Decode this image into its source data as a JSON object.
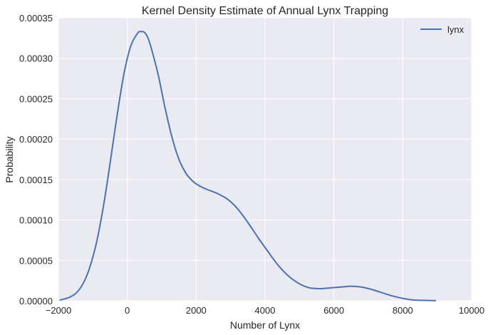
{
  "chart_data": {
    "type": "line",
    "title": "Kernel Density Estimate of Annual Lynx Trapping",
    "xlabel": "Number of Lynx",
    "ylabel": "Probability",
    "xlim": [
      -2000,
      10000
    ],
    "ylim": [
      0,
      0.00035
    ],
    "xticks": [
      -2000,
      0,
      2000,
      4000,
      6000,
      8000,
      10000
    ],
    "xtick_labels": [
      "−2000",
      "0",
      "2000",
      "4000",
      "6000",
      "8000",
      "10000"
    ],
    "yticks": [
      0,
      5e-05,
      0.0001,
      0.00015,
      0.0002,
      0.00025,
      0.0003,
      0.00035
    ],
    "ytick_labels": [
      "0.00000",
      "0.00005",
      "0.00010",
      "0.00015",
      "0.00020",
      "0.00025",
      "0.00030",
      "0.00035"
    ],
    "grid": true,
    "legend_position": "top-right",
    "series": [
      {
        "name": "lynx",
        "color": "#4c72b0",
        "x": [
          -1950,
          -1700,
          -1500,
          -1300,
          -1100,
          -900,
          -700,
          -500,
          -300,
          -100,
          100,
          300,
          400,
          500,
          600,
          700,
          900,
          1100,
          1300,
          1500,
          1700,
          1900,
          2100,
          2300,
          2600,
          2900,
          3200,
          3500,
          3800,
          4100,
          4400,
          4700,
          5000,
          5300,
          5600,
          5900,
          6200,
          6500,
          6800,
          7100,
          7400,
          7700,
          8000,
          8300,
          8600,
          8950
        ],
        "y": [
          1e-06,
          4e-06,
          9e-06,
          2e-05,
          4e-05,
          7.1e-05,
          0.000115,
          0.00017,
          0.000228,
          0.00028,
          0.000315,
          0.000331,
          0.000333,
          0.000332,
          0.000325,
          0.000312,
          0.000279,
          0.000238,
          0.000202,
          0.000175,
          0.000158,
          0.000148,
          0.000142,
          0.000138,
          0.000133,
          0.000126,
          0.000114,
          9.7e-05,
          7.8e-05,
          6e-05,
          4.3e-05,
          3e-05,
          2.1e-05,
          1.6e-05,
          1.5e-05,
          1.6e-05,
          1.7e-05,
          1.8e-05,
          1.7e-05,
          1.4e-05,
          1e-05,
          6e-06,
          3e-06,
          1e-06,
          5e-07,
          3e-07
        ]
      }
    ]
  },
  "colors": {
    "plot_background": "#eaeaf2",
    "grid": "#ffffff",
    "line": "#4c72b0"
  }
}
